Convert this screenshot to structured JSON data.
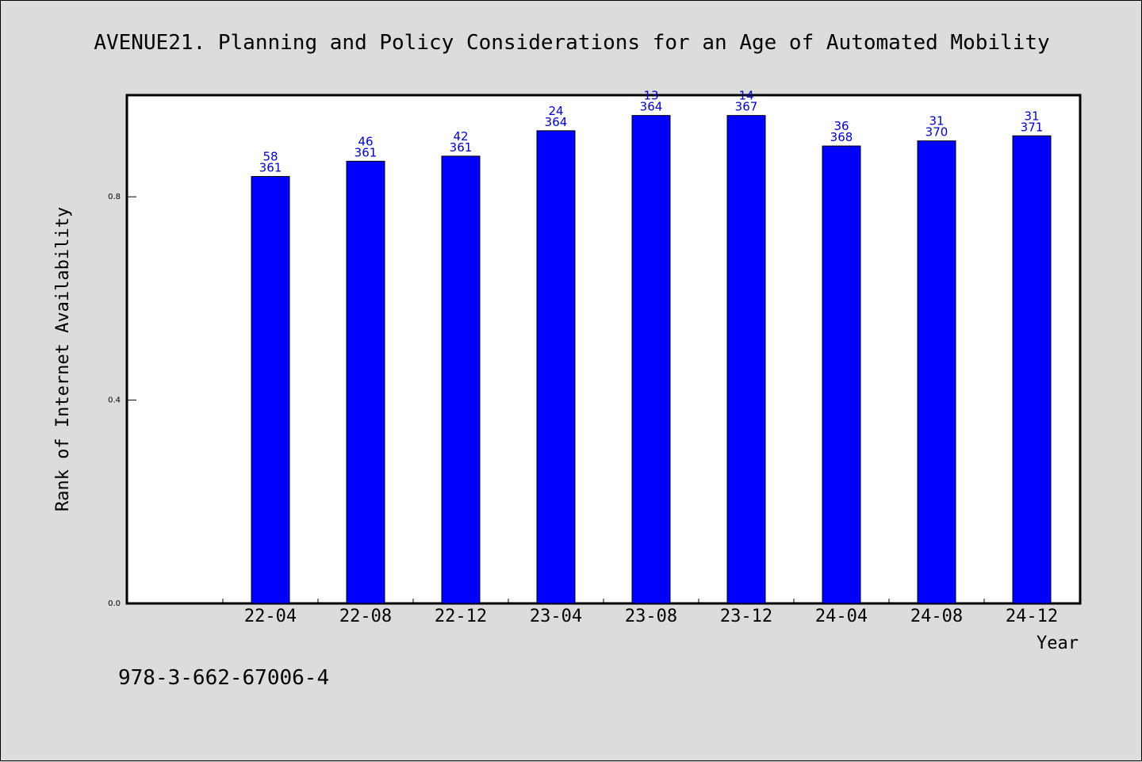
{
  "chart_data": {
    "type": "bar",
    "title": "AVENUE21. Planning and Policy Considerations for an Age of Automated Mobility",
    "xlabel": "Year",
    "ylabel": "Rank of Internet Availability",
    "categories": [
      "22-04",
      "22-08",
      "22-12",
      "23-04",
      "23-08",
      "23-12",
      "24-04",
      "24-08",
      "24-12"
    ],
    "values": [
      0.84,
      0.87,
      0.88,
      0.93,
      0.96,
      0.96,
      0.9,
      0.91,
      0.92
    ],
    "rank_labels": [
      "58",
      "46",
      "42",
      "24",
      "13",
      "14",
      "36",
      "31",
      "31"
    ],
    "total_labels": [
      "361",
      "361",
      "361",
      "364",
      "364",
      "367",
      "368",
      "370",
      "371"
    ],
    "ylim": [
      0,
      1.0
    ],
    "yticks": [
      "0.0",
      "0.4",
      "0.8"
    ],
    "ytick_values": [
      0.0,
      0.4,
      0.8
    ],
    "bar_color": "#0000ff",
    "label_color": "#0000cc",
    "grid": false,
    "legend": "none"
  },
  "footer": {
    "isbn": "978-3-662-67006-4"
  }
}
